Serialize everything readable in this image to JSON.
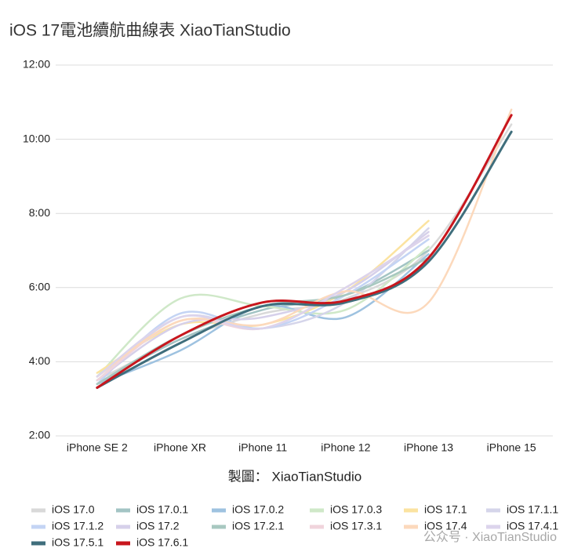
{
  "chart_data": {
    "type": "line",
    "title": "iOS 17電池續航曲線表 XiaoTianStudio",
    "credit": "製圖： XiaoTianStudio",
    "watermark": "公众号 · XiaoTianStudio",
    "categories": [
      "iPhone SE 2",
      "iPhone XR",
      "iPhone 11",
      "iPhone 12",
      "iPhone 13",
      "iPhone 15"
    ],
    "ylim": [
      2,
      12
    ],
    "yticks": [
      {
        "value": 2,
        "label": "2:00"
      },
      {
        "value": 4,
        "label": "4:00"
      },
      {
        "value": 6,
        "label": "6:00"
      },
      {
        "value": 8,
        "label": "8:00"
      },
      {
        "value": 10,
        "label": "10:00"
      },
      {
        "value": 12,
        "label": "12:00"
      }
    ],
    "grid": true,
    "smooth": true,
    "series": [
      {
        "name": "iOS 17.0",
        "color": "#d9d9d9",
        "values": [
          3.5,
          4.6,
          5.3,
          5.7,
          7.0,
          10.4
        ]
      },
      {
        "name": "iOS 17.0.1",
        "color": "#a3c4c4",
        "values": [
          3.4,
          4.6,
          5.4,
          5.8,
          7.0,
          null
        ]
      },
      {
        "name": "iOS 17.0.2",
        "color": "#9ec2e0",
        "values": [
          3.4,
          4.3,
          5.5,
          5.2,
          6.9,
          null
        ]
      },
      {
        "name": "iOS 17.0.3",
        "color": "#cfe8c8",
        "values": [
          3.6,
          5.7,
          5.5,
          5.4,
          7.1,
          null
        ]
      },
      {
        "name": "iOS 17.1",
        "color": "#fbe3a0",
        "values": [
          3.7,
          5.0,
          5.0,
          5.9,
          7.8,
          null
        ]
      },
      {
        "name": "iOS 17.1.1",
        "color": "#d5d5ea",
        "values": [
          3.5,
          5.2,
          4.9,
          5.6,
          7.6,
          null
        ]
      },
      {
        "name": "iOS 17.1.2",
        "color": "#c4d4f4",
        "values": [
          3.4,
          5.3,
          4.9,
          5.8,
          7.3,
          null
        ]
      },
      {
        "name": "iOS 17.2",
        "color": "#d6d0ea",
        "values": [
          3.5,
          5.0,
          5.2,
          5.9,
          7.5,
          null
        ]
      },
      {
        "name": "iOS 17.2.1",
        "color": "#a8c8c0",
        "values": [
          3.4,
          4.7,
          5.5,
          5.8,
          6.8,
          null
        ]
      },
      {
        "name": "iOS 17.3.1",
        "color": "#f0d4dc",
        "values": [
          3.5,
          5.1,
          4.9,
          6.0,
          7.4,
          null
        ]
      },
      {
        "name": "iOS 17.4",
        "color": "#fcd9bc",
        "values": [
          3.6,
          5.1,
          5.0,
          5.9,
          5.6,
          10.8
        ]
      },
      {
        "name": "iOS 17.4.1",
        "color": "#dcd4ec",
        "values": [
          3.6,
          5.2,
          4.9,
          6.0,
          7.4,
          null
        ]
      },
      {
        "name": "iOS 17.5.1",
        "color": "#3f6e7c",
        "values": [
          3.3,
          4.5,
          5.5,
          5.6,
          6.7,
          10.2
        ]
      },
      {
        "name": "iOS 17.6.1",
        "color": "#c8161d",
        "values": [
          3.3,
          4.7,
          5.6,
          5.65,
          6.8,
          10.65
        ]
      }
    ]
  }
}
